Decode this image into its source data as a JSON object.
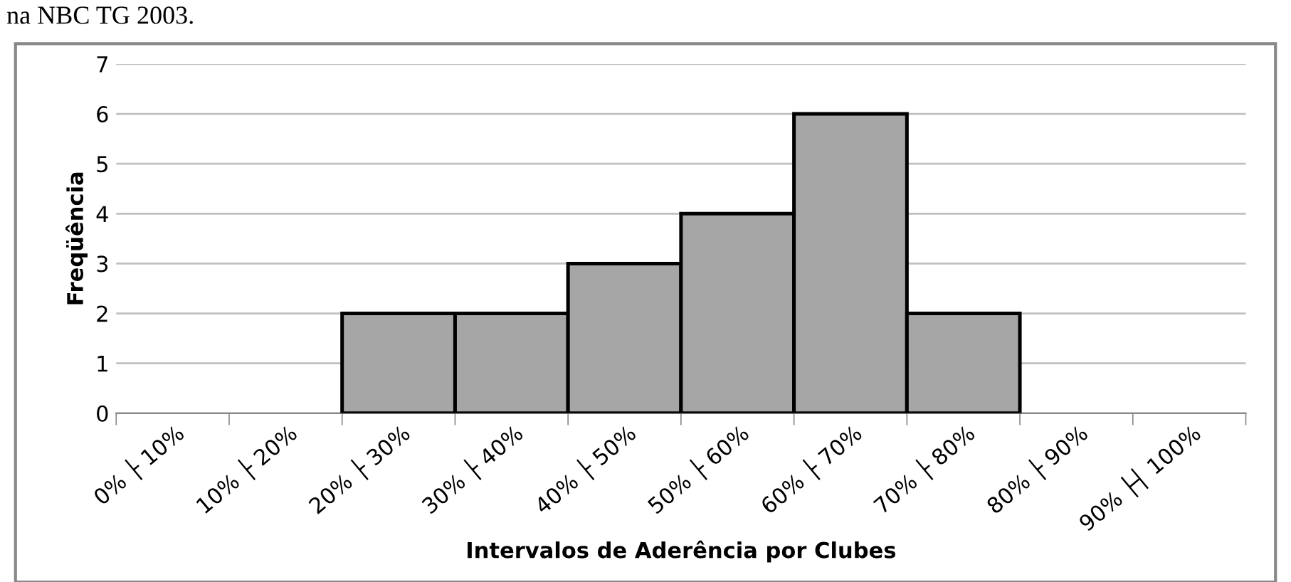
{
  "chart_data": {
    "type": "bar",
    "categories": [
      "0% ├ 10%",
      "10% ├ 20%",
      "20% ├ 30%",
      "30% ├ 40%",
      "40% ├ 50%",
      "50% ├ 60%",
      "60% ├ 70%",
      "70% ├ 80%",
      "80% ├ 90%",
      "90% ├┤ 100%"
    ],
    "values": [
      0,
      0,
      2,
      2,
      3,
      4,
      6,
      2,
      0,
      0
    ],
    "color": "#a6a6a6",
    "xlabel": "Intervalos de Aderência por Clubes",
    "ylabel": "Freqüência",
    "ylim": [
      0,
      7
    ],
    "yticks": [
      0,
      1,
      2,
      3,
      4,
      5,
      6,
      7
    ],
    "grid": "y",
    "annotations": [
      "na NBC TG 2003."
    ]
  }
}
